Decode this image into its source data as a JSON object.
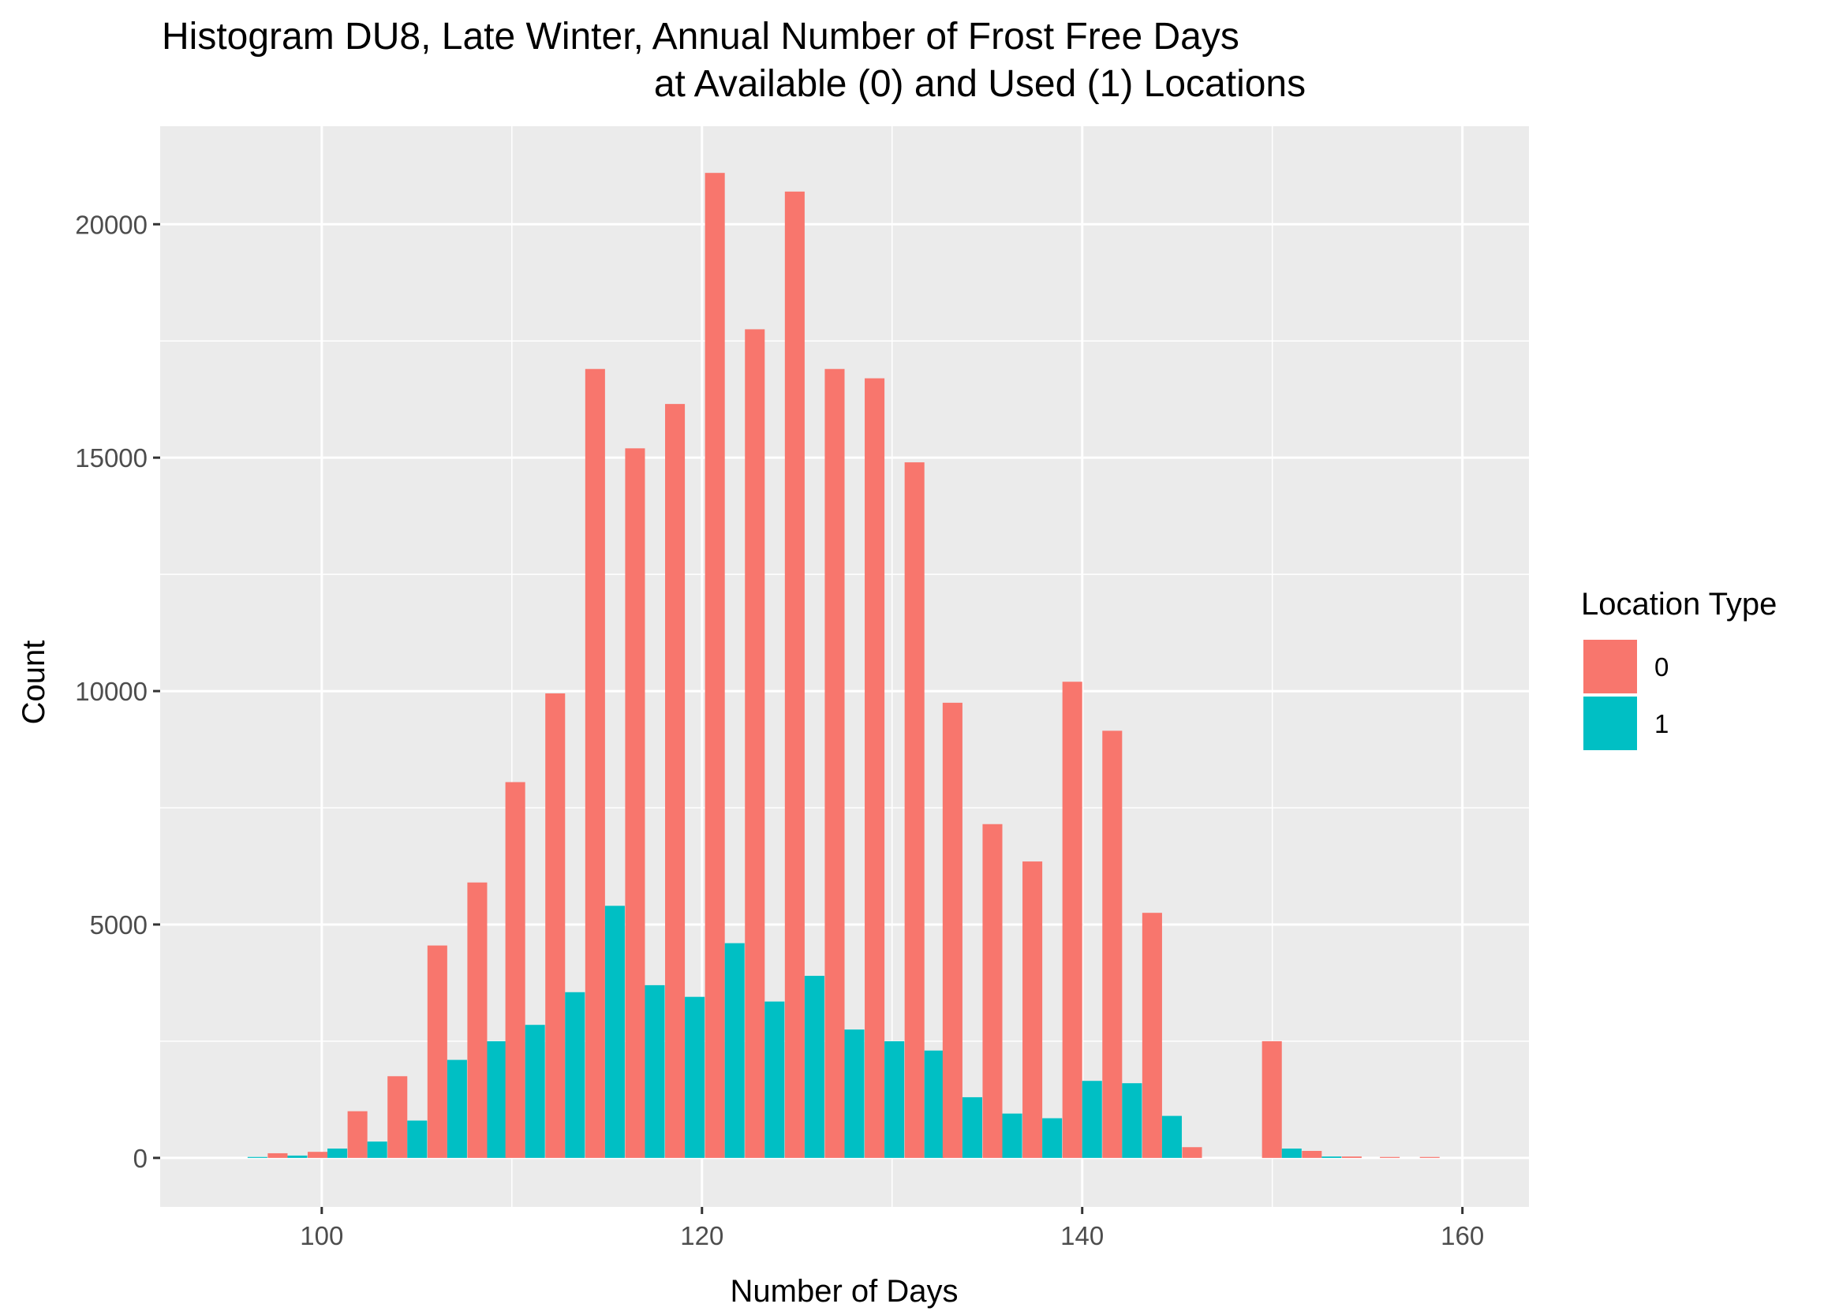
{
  "chart_data": {
    "type": "bar",
    "title_lines": [
      "Histogram DU8, Late Winter, Annual Number of Frost Free Days",
      "at Available (0) and Used (1) Locations"
    ],
    "xlabel": "Number of Days",
    "ylabel": "Count",
    "xlim": [
      91.5,
      163.5
    ],
    "ylim": [
      -1050,
      22100
    ],
    "x_ticks": [
      100,
      120,
      140,
      160
    ],
    "y_ticks": [
      0,
      5000,
      10000,
      15000,
      20000
    ],
    "x_tick_labels": [
      "100",
      "120",
      "140",
      "160"
    ],
    "y_tick_labels": [
      "0",
      "5000",
      "10000",
      "15000",
      "20000"
    ],
    "x_minor_ticks": [
      110,
      130,
      150
    ],
    "y_minor_ticks": [
      2500,
      7500,
      12500,
      17500
    ],
    "bin_width": 2.08,
    "grid": true,
    "legend": {
      "title": "Location Type",
      "position": "right",
      "entries": [
        {
          "label": "0",
          "color": "#F8766D"
        },
        {
          "label": "1",
          "color": "#00BFC4"
        }
      ]
    },
    "x": [
      96.1,
      98.2,
      100.3,
      102.4,
      104.5,
      106.6,
      108.7,
      110.7,
      112.8,
      114.9,
      117.0,
      119.1,
      121.2,
      123.3,
      125.4,
      127.5,
      129.6,
      131.7,
      133.7,
      135.8,
      137.9,
      140.0,
      142.1,
      144.2,
      146.3,
      148.4,
      150.5,
      152.6,
      154.7,
      156.7,
      158.8
    ],
    "series": [
      {
        "name": "0",
        "color": "#F8766D",
        "values": [
          0,
          100,
          130,
          1000,
          1750,
          4550,
          5900,
          8050,
          9950,
          16900,
          15200,
          16150,
          21100,
          17750,
          20700,
          16900,
          16700,
          14900,
          9750,
          7150,
          6350,
          10200,
          9150,
          5250,
          230,
          0,
          2500,
          150,
          30,
          20,
          20
        ]
      },
      {
        "name": "1",
        "color": "#00BFC4",
        "values": [
          20,
          50,
          200,
          350,
          800,
          2100,
          2500,
          2850,
          3550,
          5400,
          3700,
          3450,
          4600,
          3350,
          3900,
          2750,
          2500,
          2300,
          1300,
          950,
          850,
          1650,
          1600,
          900,
          0,
          0,
          200,
          30,
          0,
          0,
          0
        ]
      }
    ]
  }
}
